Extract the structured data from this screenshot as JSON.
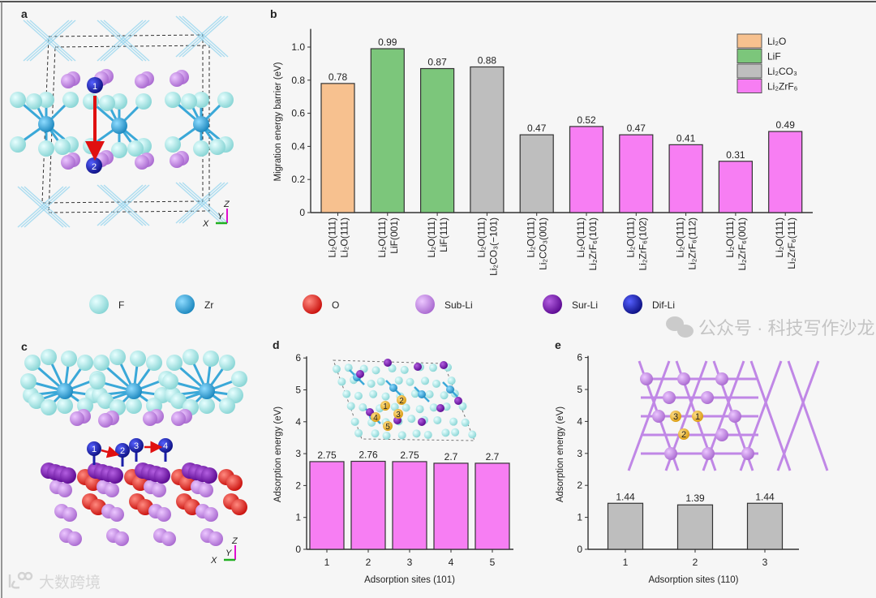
{
  "panels": {
    "a": "a",
    "b": "b",
    "c": "c",
    "d": "d",
    "e": "e"
  },
  "structure_a": {
    "sites": [
      "1",
      "2"
    ],
    "axes": {
      "z": "Z",
      "y": "Y",
      "x": "X"
    }
  },
  "structure_c": {
    "sites": [
      "1",
      "2",
      "3",
      "4"
    ],
    "axes": {
      "z": "Z",
      "y": "Y",
      "x": "X"
    }
  },
  "inset_d": {
    "sites": [
      "1",
      "2",
      "3",
      "4",
      "5"
    ]
  },
  "inset_e": {
    "sites": [
      "1",
      "2",
      "3"
    ]
  },
  "atom_legend": [
    {
      "label": "F",
      "color": "#9fe6e6"
    },
    {
      "label": "Zr",
      "color": "#2fa6d8"
    },
    {
      "label": "O",
      "color": "#e0201a"
    },
    {
      "label": "Sub-Li",
      "color": "#c88be6"
    },
    {
      "label": "Sur-Li",
      "color": "#7a12b0"
    },
    {
      "label": "Dif-Li",
      "color": "#1a1ea8"
    }
  ],
  "watermarks": {
    "wechat": "公众号 · 科技写作沙龙",
    "brand": "大数跨境"
  },
  "chart_data": [
    {
      "panel": "b",
      "type": "bar",
      "title": "",
      "xlabel": "",
      "ylabel": "Migration energy barrier (eV)",
      "ylim": [
        0,
        1.1
      ],
      "yticks": [
        "0",
        "0.2",
        "0.4",
        "0.6",
        "0.8",
        "1.0"
      ],
      "categories": [
        [
          "Li₂O(111)",
          "Li₂O(111)"
        ],
        [
          "Li₂O(111)",
          "LiF(001)"
        ],
        [
          "Li₂O(111)",
          "LiF(111)"
        ],
        [
          "Li₂O(111)",
          "Li₂CO₃(−101)"
        ],
        [
          "Li₂O(111)",
          "Li₂CO₃(001)"
        ],
        [
          "Li₂O(111)",
          "Li₂ZrF₆(101)"
        ],
        [
          "Li₂O(111)",
          "Li₂ZrF₆(102)"
        ],
        [
          "Li₂O(111)",
          "Li₂ZrF₆(112)"
        ],
        [
          "Li₂O(111)",
          "Li₂ZrF₆(001)"
        ],
        [
          "Li₂O(111)",
          "Li₂ZrF₆(111)"
        ]
      ],
      "values": [
        0.78,
        0.99,
        0.87,
        0.88,
        0.47,
        0.52,
        0.47,
        0.41,
        0.31,
        0.49
      ],
      "value_labels": [
        "0.78",
        "0.99",
        "0.87",
        "0.88",
        "0.47",
        "0.52",
        "0.47",
        "0.41",
        "0.31",
        "0.49"
      ],
      "groups": [
        0,
        1,
        1,
        2,
        2,
        3,
        3,
        3,
        3,
        3
      ],
      "legend": [
        {
          "label": "Li₂O",
          "color": "#f7c18f"
        },
        {
          "label": "LiF",
          "color": "#7cc67b"
        },
        {
          "label": "Li₂CO₃",
          "color": "#bebebe"
        },
        {
          "label": "Li₂ZrF₆",
          "color": "#f77ef3"
        }
      ],
      "legend_position": "top-right",
      "grid": false
    },
    {
      "panel": "d",
      "type": "bar",
      "xlabel": "Adsorption sites (101)",
      "ylabel": "Adsorption energy (eV)",
      "ylim": [
        0,
        6
      ],
      "yticks": [
        "0",
        "1",
        "2",
        "3",
        "4",
        "5",
        "6"
      ],
      "categories": [
        "1",
        "2",
        "3",
        "4",
        "5"
      ],
      "values": [
        2.75,
        2.76,
        2.75,
        2.7,
        2.7
      ],
      "value_labels": [
        "2.75",
        "2.76",
        "2.75",
        "2.7",
        "2.7"
      ],
      "color": "#f77ef3",
      "grid": false
    },
    {
      "panel": "e",
      "type": "bar",
      "xlabel": "Adsorption sites (110)",
      "ylabel": "Adsorption energy (eV)",
      "ylim": [
        0,
        6
      ],
      "yticks": [
        "0",
        "1",
        "2",
        "3",
        "4",
        "5",
        "6"
      ],
      "categories": [
        "1",
        "2",
        "3"
      ],
      "values": [
        1.44,
        1.39,
        1.44
      ],
      "value_labels": [
        "1.44",
        "1.39",
        "1.44"
      ],
      "color": "#bebebe",
      "grid": false
    }
  ]
}
